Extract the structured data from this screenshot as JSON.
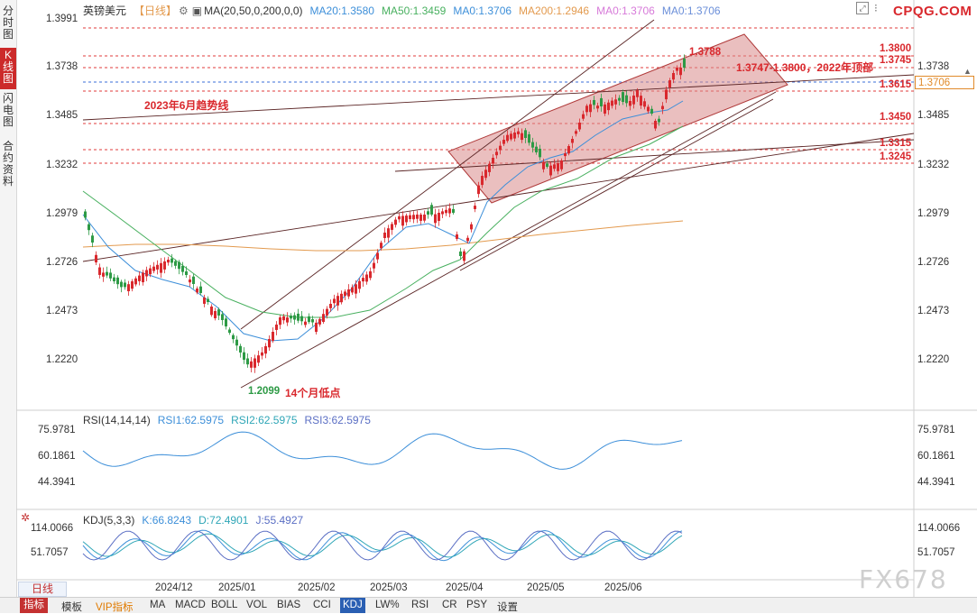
{
  "sidebar": {
    "tabs": [
      "分时图",
      "K线图",
      "闪电图",
      "合约资料"
    ]
  },
  "legend_main": {
    "symbol": "英镑美元",
    "period": "【日线】",
    "ma_title": "MA(20,50,0,200,0,0)",
    "ma20": "MA20:1.3580",
    "ma50": "MA50:1.3459",
    "ma0a": "MA0:1.3706",
    "ma200": "MA200:1.2946",
    "ma0b": "MA0:1.3706",
    "ma0c": "MA0:1.3706"
  },
  "watermark_top": "CPQG.COM",
  "watermark_bottom": "FX678",
  "price_axis": [
    "1.3991",
    "1.3738",
    "1.3485",
    "1.3232",
    "1.2979",
    "1.2726",
    "1.2473",
    "1.2220"
  ],
  "current_price": "1.3706",
  "levels": [
    "1.3800",
    "1.3745",
    "1.3615",
    "1.3450",
    "1.3315",
    "1.3245"
  ],
  "annotations": {
    "high": "1.3788",
    "top_note": "1.3747-1.3800，2022年顶部",
    "trendline": "2023年6月趋势线",
    "low_value": "1.2099",
    "low_note": "14个月低点"
  },
  "rsi": {
    "title": "RSI(14,14,14)",
    "rsi1": "RSI1:62.5975",
    "rsi2": "RSI2:62.5975",
    "rsi3": "RSI3:62.5975",
    "axis": [
      "75.9781",
      "60.1861",
      "44.3941"
    ]
  },
  "kdj": {
    "title": "KDJ(5,3,3)",
    "k": "K:66.8243",
    "d": "D:72.4901",
    "j": "J:55.4927",
    "axis": [
      "114.0066",
      "51.7057"
    ]
  },
  "time_axis": [
    "2024/12",
    "2025/01",
    "2025/02",
    "2025/03",
    "2025/04",
    "2025/05",
    "2025/06"
  ],
  "period_button": "日线",
  "bottom_tabs": [
    "指标",
    "模板",
    "VIP指标",
    "MA",
    "MACD",
    "BOLL",
    "VOL",
    "BIAS",
    "CCI",
    "KDJ",
    "LW%",
    "RSI",
    "CR",
    "PSY",
    "设置"
  ],
  "colors": {
    "up": "#d9282d",
    "down": "#2d9a45",
    "ma20": "#3d8fd9",
    "ma50": "#48b05f",
    "ma200": "#e39a4e",
    "accent": "#c43131"
  }
}
